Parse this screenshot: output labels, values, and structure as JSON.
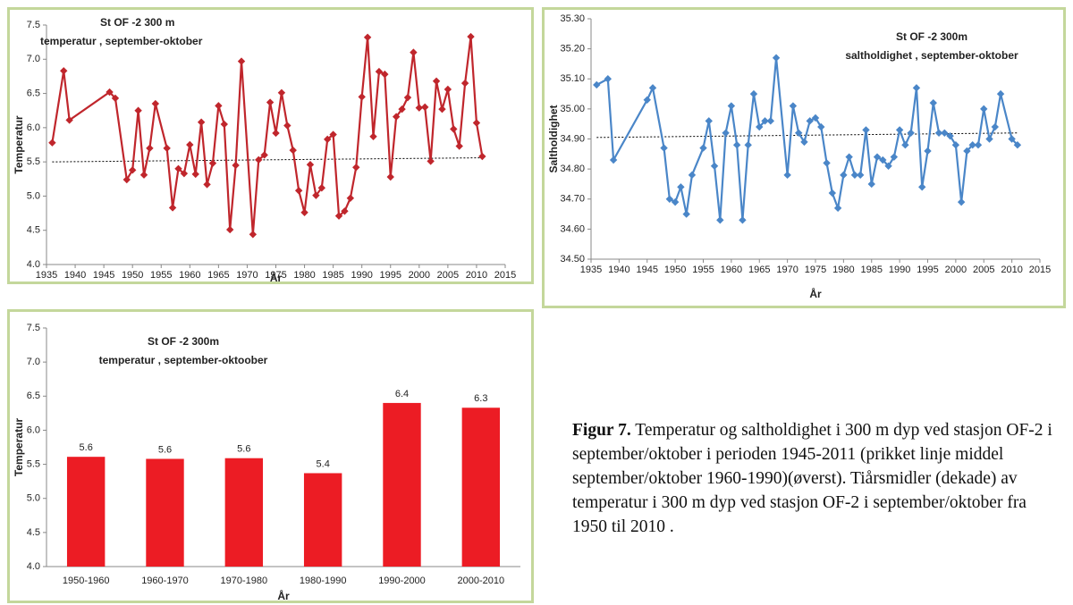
{
  "chart_data": [
    {
      "type": "line",
      "title": "St OF -2  300 m",
      "subtitle": "temperatur , september-oktober",
      "xlabel": "År",
      "ylabel": "Temperatur",
      "x": [
        1936,
        1938,
        1939,
        1946,
        1947,
        1949,
        1950,
        1951,
        1952,
        1953,
        1954,
        1956,
        1957,
        1958,
        1959,
        1960,
        1961,
        1962,
        1963,
        1964,
        1965,
        1966,
        1967,
        1968,
        1969,
        1971,
        1972,
        1973,
        1974,
        1975,
        1976,
        1977,
        1978,
        1979,
        1980,
        1981,
        1982,
        1983,
        1984,
        1985,
        1986,
        1987,
        1988,
        1989,
        1990,
        1991,
        1992,
        1993,
        1994,
        1995,
        1996,
        1997,
        1998,
        1999,
        2000,
        2001,
        2002,
        2003,
        2004,
        2005,
        2006,
        2007,
        2008,
        2009,
        2010,
        2011
      ],
      "values": [
        5.78,
        6.83,
        6.11,
        6.52,
        6.43,
        5.24,
        5.38,
        6.25,
        5.31,
        5.7,
        6.35,
        5.7,
        4.83,
        5.4,
        5.33,
        5.75,
        5.32,
        6.08,
        5.17,
        5.48,
        6.32,
        6.05,
        4.51,
        5.45,
        6.97,
        4.44,
        5.53,
        5.6,
        6.37,
        5.92,
        6.51,
        6.03,
        5.67,
        5.08,
        4.76,
        5.46,
        5.01,
        5.12,
        5.83,
        5.9,
        4.71,
        4.78,
        4.97,
        5.42,
        6.45,
        7.32,
        5.87,
        6.82,
        6.78,
        5.28,
        6.16,
        6.27,
        6.44,
        7.1,
        6.29,
        6.3,
        5.51,
        6.68,
        6.27,
        6.56,
        5.98,
        5.73,
        6.65,
        7.33,
        6.07,
        5.58
      ],
      "color": "#c0262c",
      "trendline": {
        "x": [
          1936,
          2011
        ],
        "values": [
          5.5,
          5.56
        ],
        "color": "#000000"
      },
      "xlim": [
        1935,
        2015
      ],
      "xticks": [
        1935,
        1940,
        1945,
        1950,
        1955,
        1960,
        1965,
        1970,
        1975,
        1980,
        1985,
        1990,
        1995,
        2000,
        2005,
        2010,
        2015
      ],
      "ylim": [
        4,
        7.5
      ],
      "yticks": [
        {
          "value": 4,
          "label": "4.0"
        },
        {
          "value": 4.5,
          "label": "4.5"
        },
        {
          "value": 5,
          "label": "5.0"
        },
        {
          "value": 5.5,
          "label": "5.5"
        },
        {
          "value": 6,
          "label": "6.0"
        },
        {
          "value": 6.5,
          "label": "6.5"
        },
        {
          "value": 7,
          "label": "7.0"
        },
        {
          "value": 7.5,
          "label": "7.5"
        }
      ]
    },
    {
      "type": "line",
      "title": "St OF -2  300m",
      "subtitle": "saltholdighet , september-oktober",
      "xlabel": "År",
      "ylabel": "Saltholdighet",
      "x": [
        1936,
        1938,
        1939,
        1945,
        1946,
        1948,
        1949,
        1950,
        1951,
        1952,
        1953,
        1955,
        1956,
        1957,
        1958,
        1959,
        1960,
        1961,
        1962,
        1963,
        1964,
        1965,
        1966,
        1967,
        1968,
        1970,
        1971,
        1972,
        1973,
        1974,
        1975,
        1976,
        1977,
        1978,
        1979,
        1980,
        1981,
        1982,
        1983,
        1984,
        1985,
        1986,
        1987,
        1988,
        1989,
        1990,
        1991,
        1992,
        1993,
        1994,
        1995,
        1996,
        1997,
        1998,
        1999,
        2000,
        2001,
        2002,
        2003,
        2004,
        2005,
        2006,
        2007,
        2008,
        2010,
        2011
      ],
      "values": [
        35.08,
        35.1,
        34.83,
        35.03,
        35.07,
        34.87,
        34.7,
        34.69,
        34.74,
        34.65,
        34.78,
        34.87,
        34.96,
        34.81,
        34.63,
        34.92,
        35.01,
        34.88,
        34.63,
        34.88,
        35.05,
        34.94,
        34.96,
        34.96,
        35.17,
        34.78,
        35.01,
        34.92,
        34.89,
        34.96,
        34.97,
        34.94,
        34.82,
        34.72,
        34.67,
        34.78,
        34.84,
        34.78,
        34.78,
        34.93,
        34.75,
        34.84,
        34.83,
        34.81,
        34.84,
        34.93,
        34.88,
        34.92,
        35.07,
        34.74,
        34.86,
        35.02,
        34.92,
        34.92,
        34.91,
        34.88,
        34.69,
        34.86,
        34.88,
        34.88,
        35.0,
        34.9,
        34.94,
        35.05,
        34.9,
        34.88
      ],
      "color": "#4a86c8",
      "trendline": {
        "x": [
          1936,
          2011
        ],
        "values": [
          34.905,
          34.92
        ],
        "color": "#000000"
      },
      "xlim": [
        1935,
        2015
      ],
      "xticks": [
        1935,
        1940,
        1945,
        1950,
        1955,
        1960,
        1965,
        1970,
        1975,
        1980,
        1985,
        1990,
        1995,
        2000,
        2005,
        2010,
        2015
      ],
      "ylim": [
        34.5,
        35.3
      ],
      "yticks": [
        {
          "value": 34.5,
          "label": "34.50"
        },
        {
          "value": 34.6,
          "label": "34.60"
        },
        {
          "value": 34.7,
          "label": "34.70"
        },
        {
          "value": 34.8,
          "label": "34.80"
        },
        {
          "value": 34.9,
          "label": "34.90"
        },
        {
          "value": 35,
          "label": "35.00"
        },
        {
          "value": 35.1,
          "label": "35.10"
        },
        {
          "value": 35.2,
          "label": "35.20"
        },
        {
          "value": 35.3,
          "label": "35.30"
        }
      ]
    },
    {
      "type": "bar",
      "title": "St OF -2  300m",
      "subtitle": "temperatur , september-oktoober",
      "xlabel": "År",
      "ylabel": "Temperatur",
      "categories": [
        "1950-1960",
        "1960-1970",
        "1970-1980",
        "1980-1990",
        "1990-2000",
        "2000-2010"
      ],
      "values": [
        5.61,
        5.58,
        5.59,
        5.37,
        6.4,
        6.33
      ],
      "value_labels": [
        "5.6",
        "5.6",
        "5.6",
        "5.4",
        "6.4",
        "6.3"
      ],
      "color": "#ec1c24",
      "ylim": [
        4,
        7.5
      ],
      "yticks": [
        {
          "value": 4,
          "label": "4.0"
        },
        {
          "value": 4.5,
          "label": "4.5"
        },
        {
          "value": 5,
          "label": "5.0"
        },
        {
          "value": 5.5,
          "label": "5.5"
        },
        {
          "value": 6,
          "label": "6.0"
        },
        {
          "value": 6.5,
          "label": "6.5"
        },
        {
          "value": 7,
          "label": "7.0"
        },
        {
          "value": 7.5,
          "label": "7.5"
        }
      ]
    }
  ],
  "caption": {
    "label": "Figur 7.",
    "text": "Temperatur og saltholdighet i 300 m dyp ved stasjon OF-2 i september/oktober i perioden 1945-2011  (prikket linje middel september/oktober 1960-1990)(øverst). Tiårsmidler (dekade) av temperatur i 300 m dyp ved stasjon OF-2 i september/oktober fra 1950 til 2010 ."
  }
}
